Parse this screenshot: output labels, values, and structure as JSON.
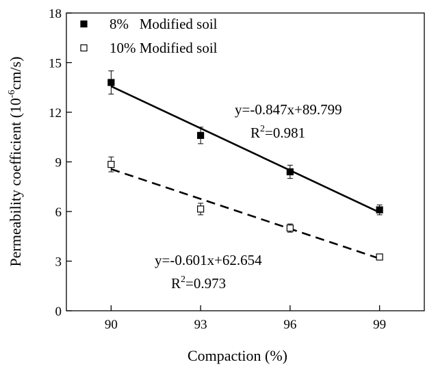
{
  "chart_data": {
    "type": "scatter",
    "title": "",
    "xlabel": "Compaction (%)",
    "ylabel_main": "Permeability coefficient (10",
    "ylabel_sup": "-6",
    "ylabel_tail": "cm/s)",
    "xlim": [
      88.5,
      100.5
    ],
    "ylim": [
      0,
      18
    ],
    "x_ticks": [
      90,
      93,
      96,
      99
    ],
    "y_ticks": [
      0,
      3,
      6,
      9,
      12,
      15,
      18
    ],
    "legend_placement": "top-left",
    "grid": false,
    "series": [
      {
        "name": "8%   Modified soil",
        "marker": "filled-square",
        "color": "#000000",
        "x": [
          90,
          93,
          96,
          99
        ],
        "y": [
          13.8,
          10.6,
          8.4,
          6.1
        ],
        "error": [
          0.7,
          0.5,
          0.4,
          0.3
        ],
        "fit": {
          "slope": -0.847,
          "intercept": 89.799,
          "dash": "solid"
        },
        "equation": "y=-0.847x+89.799",
        "r2_prefix": "R",
        "r2_sup": "2",
        "r2_value": "=0.981"
      },
      {
        "name": "10% Modified soil",
        "marker": "open-square",
        "color": "#000000",
        "x": [
          90,
          93,
          96,
          99
        ],
        "y": [
          8.85,
          6.15,
          5.0,
          3.25
        ],
        "error": [
          0.45,
          0.35,
          0.25,
          0.1
        ],
        "fit": {
          "slope": -0.601,
          "intercept": 62.654,
          "dash": "dashed"
        },
        "equation": "y=-0.601x+62.654",
        "r2_prefix": "R",
        "r2_sup": "2",
        "r2_value": "=0.973"
      }
    ]
  }
}
